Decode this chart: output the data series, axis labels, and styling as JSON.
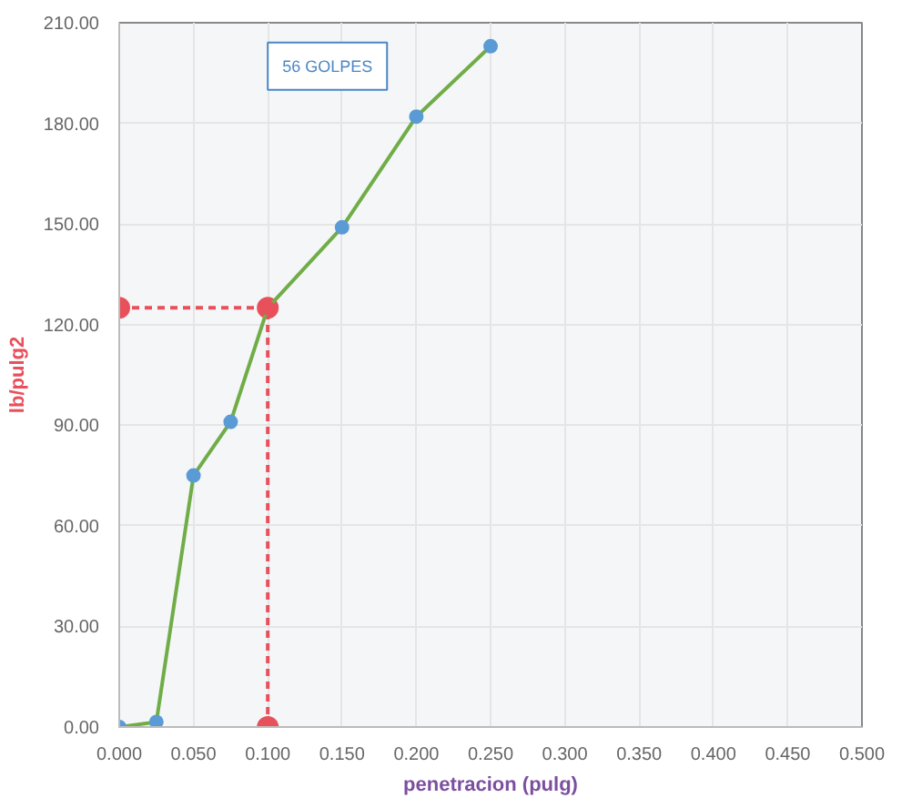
{
  "chart_data": {
    "type": "line",
    "xlabel": "penetracion (pulg)",
    "ylabel": "lb/pulg2",
    "annotations": [
      "56 GOLPES"
    ],
    "series": [
      {
        "color": "#70ad47",
        "colors": [
          "#5b9bd5",
          "#5b9bd5",
          "#5b9bd5",
          "#5b9bd5",
          "#e8505b",
          "#5b9bd5",
          "#5b9bd5",
          "#5b9bd5"
        ],
        "x": [
          0,
          0.025,
          0.05,
          0.075,
          0.1,
          0.15,
          0.2,
          0.25
        ],
        "values": [
          0,
          1.5,
          75,
          91,
          125,
          149,
          182,
          203
        ],
        "marker": "circle",
        "line_style": "solid"
      },
      {
        "color": "#e8505b",
        "x": [
          0,
          0.1,
          0.1
        ],
        "values": [
          125,
          125,
          0
        ],
        "marker": "circle",
        "line_style": "dashed"
      }
    ],
    "xlim": [
      0,
      0.5
    ],
    "ylim": [
      0,
      210
    ],
    "xticks": [
      {
        "value": 0,
        "label": "0.000"
      },
      {
        "value": 0.05,
        "label": "0.050"
      },
      {
        "value": 0.1,
        "label": "0.100"
      },
      {
        "value": 0.15,
        "label": "0.150"
      },
      {
        "value": 0.2,
        "label": "0.200"
      },
      {
        "value": 0.25,
        "label": "0.250"
      },
      {
        "value": 0.3,
        "label": "0.300"
      },
      {
        "value": 0.35,
        "label": "0.350"
      },
      {
        "value": 0.4,
        "label": "0.400"
      },
      {
        "value": 0.45,
        "label": "0.450"
      },
      {
        "value": 0.5,
        "label": "0.500"
      }
    ],
    "yticks": [
      {
        "value": 0,
        "label": "0.00"
      },
      {
        "value": 30,
        "label": "30.00"
      },
      {
        "value": 60,
        "label": "60.00"
      },
      {
        "value": 90,
        "label": "90.00"
      },
      {
        "value": 120,
        "label": "120.00"
      },
      {
        "value": 150,
        "label": "150.00"
      },
      {
        "value": 180,
        "label": "180.00"
      },
      {
        "value": 210,
        "label": "210.00"
      }
    ],
    "grid": true
  }
}
